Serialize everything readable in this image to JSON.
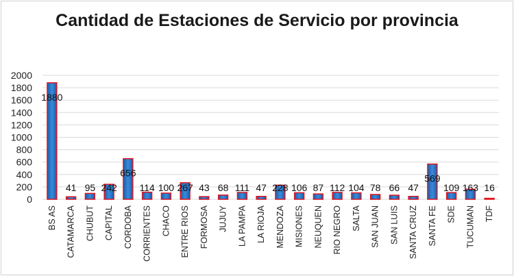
{
  "chart_data": {
    "type": "bar",
    "title": "Cantidad de Estaciones de Servicio por provincia",
    "xlabel": "",
    "ylabel": "",
    "ylim": [
      0,
      2000
    ],
    "yticks": [
      0,
      200,
      400,
      600,
      800,
      1000,
      1200,
      1400,
      1600,
      1800,
      2000
    ],
    "grid": true,
    "legend": "none",
    "categories": [
      "BS AS",
      "CATAMARCA",
      "CHUBUT",
      "CAPITAL",
      "CORDOBA",
      "CORRIENTES",
      "CHACO",
      "ENTRE RIOS",
      "FORMOSA",
      "JUJUY",
      "LA PAMPA",
      "LA RIOJA",
      "MENDOZA",
      "MISIONES",
      "NEUQUEN",
      "RIO NEGRO",
      "SALTA",
      "SAN JUAN",
      "SAN LUIS",
      "SANTA CRUZ",
      "SANTA FE",
      "SDE",
      "TUCUMAN",
      "TDF"
    ],
    "values": [
      1880,
      41,
      95,
      242,
      656,
      114,
      100,
      267,
      43,
      68,
      111,
      47,
      228,
      106,
      87,
      112,
      104,
      78,
      66,
      47,
      569,
      109,
      163,
      16
    ],
    "colors": {
      "bar_fill": "#1f6fc0",
      "bar_edge": "#e0141e",
      "grid": "#d9d9d9"
    }
  }
}
